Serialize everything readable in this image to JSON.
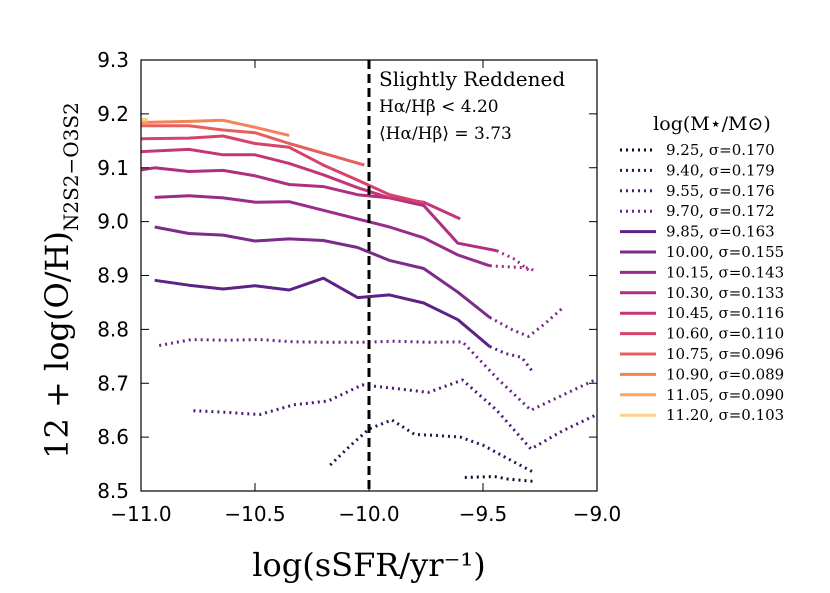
{
  "chart_data": {
    "type": "line",
    "title": "",
    "xlabel": "log(sSFR/yr⁻¹)",
    "ylabel": "12 + log(O/H)",
    "ylabel_subscript": "N2S2−O3S2",
    "xlim": [
      -11.0,
      -9.0
    ],
    "ylim": [
      8.5,
      9.3
    ],
    "x_ticks": [
      -11.0,
      -10.5,
      -10.0,
      -9.5,
      -9.0
    ],
    "x_tick_labels": [
      "−11.0",
      "−10.5",
      "−10.0",
      "−9.5",
      "−9.0"
    ],
    "y_ticks": [
      8.5,
      8.6,
      8.7,
      8.8,
      8.9,
      9.0,
      9.1,
      9.2,
      9.3
    ],
    "y_tick_labels": [
      "8.5",
      "8.6",
      "8.7",
      "8.8",
      "8.9",
      "9.0",
      "9.1",
      "9.2",
      "9.3"
    ],
    "grid": false,
    "vline": {
      "x": -10.0,
      "style": "dashed"
    },
    "annotations": [
      "Slightly Reddened",
      "Hα/Hβ < 4.20",
      "⟨Hα/Hβ⟩ = 3.73"
    ],
    "legend": {
      "title": "log(M⋆/M⊙)",
      "placement": "outside-right"
    },
    "series": [
      {
        "name": "9.25,   σ=0.170",
        "color": "#0d0829",
        "style": "dotted",
        "x": [
          -9.58,
          -9.45,
          -9.39,
          -9.28
        ],
        "y": [
          8.525,
          8.527,
          8.522,
          8.518
        ]
      },
      {
        "name": "9.40,   σ=0.179",
        "color": "#2c1156",
        "style": "dotted",
        "x": [
          -10.17,
          -10.08,
          -10.0,
          -9.9,
          -9.8,
          -9.7,
          -9.6,
          -9.5,
          -9.4,
          -9.28
        ],
        "y": [
          8.548,
          8.585,
          8.615,
          8.632,
          8.605,
          8.603,
          8.6,
          8.585,
          8.562,
          8.535
        ]
      },
      {
        "name": "9.55,   σ=0.176",
        "color": "#4b1a78",
        "style": "dotted",
        "x": [
          -10.77,
          -10.63,
          -10.48,
          -10.33,
          -10.18,
          -10.03,
          -9.88,
          -9.74,
          -9.59,
          -9.44,
          -9.29,
          -9.15,
          -9.0
        ],
        "y": [
          8.649,
          8.646,
          8.642,
          8.66,
          8.667,
          8.697,
          8.69,
          8.683,
          8.706,
          8.65,
          8.578,
          8.612,
          8.642
        ]
      },
      {
        "name": "9.70,   σ=0.172",
        "color": "#6a2788",
        "style": "dotted",
        "x": [
          -10.92,
          -10.78,
          -10.63,
          -10.48,
          -10.33,
          -10.18,
          -10.04,
          -9.89,
          -9.74,
          -9.59,
          -9.44,
          -9.29,
          -9.14,
          -9.0
        ],
        "y": [
          8.77,
          8.781,
          8.78,
          8.781,
          8.777,
          8.776,
          8.776,
          8.778,
          8.776,
          8.777,
          8.71,
          8.65,
          8.68,
          8.708
        ]
      },
      {
        "name": "9.85,   σ=0.163",
        "color": "#5b2287",
        "style": "solid",
        "x": [
          -10.94,
          -10.79,
          -10.64,
          -10.5,
          -10.35,
          -10.2,
          -10.05,
          -9.91,
          -9.76,
          -9.61,
          -9.47
        ],
        "y": [
          8.891,
          8.882,
          8.875,
          8.881,
          8.873,
          8.895,
          8.859,
          8.864,
          8.849,
          8.818,
          8.768
        ]
      },
      {
        "name": "9.85 ext",
        "color": "#5b2287",
        "style": "dotted",
        "legend": false,
        "x": [
          -9.47,
          -9.4,
          -9.33,
          -9.28
        ],
        "y": [
          8.768,
          8.755,
          8.748,
          8.72
        ]
      },
      {
        "name": "10.00, σ=0.155",
        "color": "#7b2b89",
        "style": "solid",
        "x": [
          -10.94,
          -10.79,
          -10.64,
          -10.5,
          -10.35,
          -10.2,
          -10.05,
          -9.91,
          -9.76,
          -9.61,
          -9.47
        ],
        "y": [
          8.99,
          8.978,
          8.975,
          8.964,
          8.968,
          8.965,
          8.952,
          8.928,
          8.913,
          8.869,
          8.822
        ]
      },
      {
        "name": "10.00 ext",
        "color": "#7b2b89",
        "style": "dotted",
        "legend": false,
        "x": [
          -9.47,
          -9.37,
          -9.3,
          -9.23,
          -9.15
        ],
        "y": [
          8.822,
          8.799,
          8.787,
          8.81,
          8.84
        ]
      },
      {
        "name": "10.15, σ=0.143",
        "color": "#972c8a",
        "style": "solid",
        "x": [
          -10.94,
          -10.79,
          -10.64,
          -10.5,
          -10.35,
          -10.2,
          -10.05,
          -9.91,
          -9.76,
          -9.61,
          -9.47
        ],
        "y": [
          9.045,
          9.048,
          9.044,
          9.036,
          9.037,
          9.021,
          9.005,
          8.99,
          8.97,
          8.938,
          8.918
        ]
      },
      {
        "name": "10.15 ext",
        "color": "#972c8a",
        "style": "dotted",
        "legend": false,
        "x": [
          -9.47,
          -9.38,
          -9.3,
          -9.28
        ],
        "y": [
          8.918,
          8.916,
          8.914,
          8.91
        ]
      },
      {
        "name": "10.30, σ=0.133",
        "color": "#b02e81",
        "style": "solid",
        "x": [
          -11.0,
          -10.94,
          -10.79,
          -10.64,
          -10.5,
          -10.35,
          -10.2,
          -10.05,
          -9.91,
          -9.76,
          -9.61,
          -9.44
        ],
        "y": [
          9.096,
          9.1,
          9.093,
          9.095,
          9.085,
          9.069,
          9.065,
          9.05,
          9.044,
          9.03,
          8.96,
          8.946
        ]
      },
      {
        "name": "10.30 ext",
        "color": "#b02e81",
        "style": "dotted",
        "legend": false,
        "x": [
          -9.44,
          -9.36,
          -9.3
        ],
        "y": [
          8.946,
          8.93,
          8.91
        ]
      },
      {
        "name": "10.45, σ=0.116",
        "color": "#c53677",
        "style": "solid",
        "x": [
          -11.0,
          -10.79,
          -10.64,
          -10.5,
          -10.35,
          -10.2,
          -10.05,
          -9.91,
          -9.76,
          -9.6
        ],
        "y": [
          9.13,
          9.134,
          9.124,
          9.124,
          9.108,
          9.087,
          9.063,
          9.044,
          9.036,
          9.005
        ]
      },
      {
        "name": "10.60, σ=0.110",
        "color": "#d7426c",
        "style": "solid",
        "x": [
          -11.0,
          -10.79,
          -10.64,
          -10.5,
          -10.35,
          -10.2,
          -10.05,
          -9.91,
          -9.76
        ],
        "y": [
          9.154,
          9.155,
          9.159,
          9.145,
          9.138,
          9.105,
          9.077,
          9.05,
          9.035
        ]
      },
      {
        "name": "10.75, σ=0.096",
        "color": "#e85d5e",
        "style": "solid",
        "x": [
          -11.0,
          -10.79,
          -10.64,
          -10.5,
          -10.35,
          -10.02
        ],
        "y": [
          9.178,
          9.178,
          9.17,
          9.165,
          9.145,
          9.105
        ]
      },
      {
        "name": "10.90, σ=0.089",
        "color": "#f38256",
        "style": "solid",
        "x": [
          -11.0,
          -10.79,
          -10.64,
          -10.5,
          -10.35
        ],
        "y": [
          9.184,
          9.186,
          9.188,
          9.175,
          9.16
        ]
      },
      {
        "name": "11.05, σ=0.090",
        "color": "#f8a95f",
        "style": "solid",
        "x": [
          -11.0,
          -10.97
        ],
        "y": [
          9.186,
          9.186
        ]
      },
      {
        "name": "11.20, σ=0.103",
        "color": "#fcd28e",
        "style": "solid",
        "x": [
          -11.0,
          -10.97
        ],
        "y": [
          9.19,
          9.19
        ]
      }
    ]
  }
}
